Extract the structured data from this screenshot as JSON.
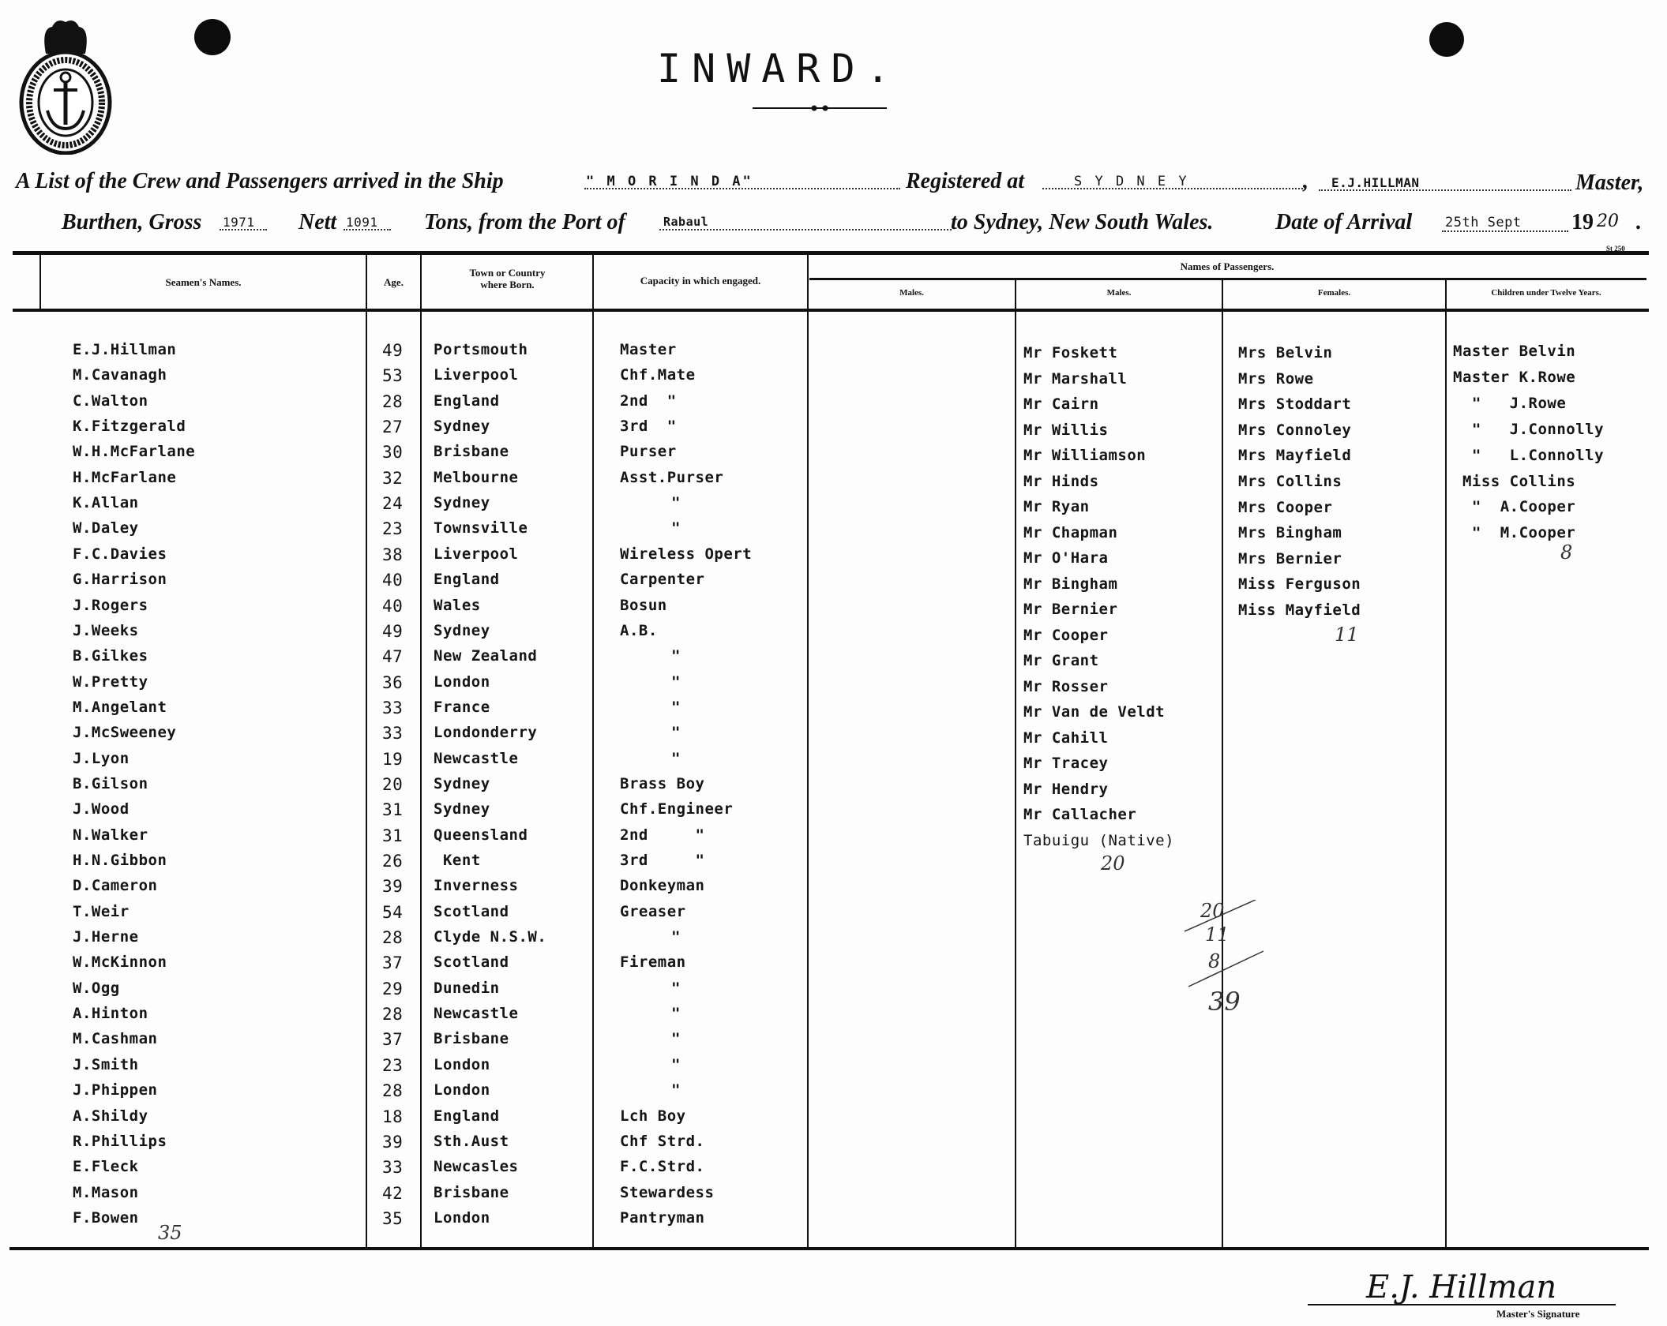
{
  "document": {
    "title": "INWARD.",
    "seal_text": "SHIPPING MASTER'S DEPARTMENT SYDNEY",
    "form_code": "St 250",
    "line1": {
      "prefix": "A List of the Crew and Passengers arrived in the Ship",
      "ship": "\" M O R I N D A\"",
      "registered_label": "Registered at",
      "registered_port": "S Y D N E Y",
      "comma": ",",
      "master_name": "E.J.HILLMAN",
      "master_label": "Master,"
    },
    "line2": {
      "burthen_label": "Burthen, Gross",
      "gross": "1971",
      "nett_label": "Nett",
      "nett": "1091",
      "tons_label": "Tons, from the Port of",
      "from_port": "Rabaul",
      "to_label": "to Sydney, New South Wales.",
      "arrival_label": "Date of Arrival",
      "arrival_date": "25th Sept",
      "year_prefix": "19",
      "year_suffix": "20",
      "period": "."
    },
    "headers": {
      "seamen_names": "Seamen's Names.",
      "age": "Age.",
      "town": "Town or Country where Born.",
      "capacity": "Capacity in which engaged.",
      "passengers": "Names of Passengers.",
      "males1": "Males.",
      "males2": "Males.",
      "females": "Females.",
      "children": "Children under Twelve Years."
    },
    "crew": [
      {
        "name": "E.J.Hillman",
        "age": "49",
        "born": "Portsmouth",
        "capacity": "Master"
      },
      {
        "name": "M.Cavanagh",
        "age": "53",
        "born": "Liverpool",
        "capacity": "Chf.Mate"
      },
      {
        "name": "C.Walton",
        "age": "28",
        "born": "England",
        "capacity": "2nd  \""
      },
      {
        "name": "K.Fitzgerald",
        "age": "27",
        "born": "Sydney",
        "capacity": "3rd  \""
      },
      {
        "name": "W.H.McFarlane",
        "age": "30",
        "born": "Brisbane",
        "capacity": "Purser"
      },
      {
        "name": "H.McFarlane",
        "age": "32",
        "born": "Melbourne",
        "capacity": "Asst.Purser"
      },
      {
        "name": "K.Allan",
        "age": "24",
        "born": "Sydney",
        "capacity": "\""
      },
      {
        "name": "W.Daley",
        "age": "23",
        "born": "Townsville",
        "capacity": "\""
      },
      {
        "name": "F.C.Davies",
        "age": "38",
        "born": "Liverpool",
        "capacity": "Wireless Opert"
      },
      {
        "name": "G.Harrison",
        "age": "40",
        "born": "England",
        "capacity": "Carpenter"
      },
      {
        "name": "J.Rogers",
        "age": "40",
        "born": "Wales",
        "capacity": "Bosun"
      },
      {
        "name": "J.Weeks",
        "age": "49",
        "born": "Sydney",
        "capacity": "A.B."
      },
      {
        "name": "B.Gilkes",
        "age": "47",
        "born": "New Zealand",
        "capacity": "\""
      },
      {
        "name": "W.Pretty",
        "age": "36",
        "born": "London",
        "capacity": "\""
      },
      {
        "name": "M.Angelant",
        "age": "33",
        "born": "France",
        "capacity": "\""
      },
      {
        "name": "J.McSweeney",
        "age": "33",
        "born": "Londonderry",
        "capacity": "\""
      },
      {
        "name": "J.Lyon",
        "age": "19",
        "born": "Newcastle",
        "capacity": "\""
      },
      {
        "name": "B.Gilson",
        "age": "20",
        "born": "Sydney",
        "capacity": "Brass Boy"
      },
      {
        "name": "J.Wood",
        "age": "31",
        "born": "Sydney",
        "capacity": "Chf.Engineer"
      },
      {
        "name": "N.Walker",
        "age": "31",
        "born": "Queensland",
        "capacity": "2nd     \""
      },
      {
        "name": "H.N.Gibbon",
        "age": "26",
        "born": " Kent",
        "capacity": "3rd     \""
      },
      {
        "name": "D.Cameron",
        "age": "39",
        "born": "Inverness",
        "capacity": "Donkeyman"
      },
      {
        "name": "T.Weir",
        "age": "54",
        "born": "Scotland",
        "capacity": "Greaser"
      },
      {
        "name": "J.Herne",
        "age": "28",
        "born": "Clyde N.S.W.",
        "capacity": "\""
      },
      {
        "name": "W.McKinnon",
        "age": "37",
        "born": "Scotland",
        "capacity": "Fireman"
      },
      {
        "name": "W.Ogg",
        "age": "29",
        "born": "Dunedin",
        "capacity": "\""
      },
      {
        "name": "A.Hinton",
        "age": "28",
        "born": "Newcastle",
        "capacity": "\""
      },
      {
        "name": "M.Cashman",
        "age": "37",
        "born": "Brisbane",
        "capacity": "\""
      },
      {
        "name": "J.Smith",
        "age": "23",
        "born": "London",
        "capacity": "\""
      },
      {
        "name": "J.Phippen",
        "age": "28",
        "born": "London",
        "capacity": "\""
      },
      {
        "name": "A.Shildy",
        "age": "18",
        "born": "England",
        "capacity": "Lch Boy"
      },
      {
        "name": "R.Phillips",
        "age": "39",
        "born": "Sth.Aust",
        "capacity": "Chf Strd."
      },
      {
        "name": "E.Fleck",
        "age": "33",
        "born": "Newcasles",
        "capacity": "F.C.Strd."
      },
      {
        "name": "M.Mason",
        "age": "42",
        "born": "Brisbane",
        "capacity": "Stewardess"
      },
      {
        "name": "F.Bowen",
        "age": "35",
        "born": "London",
        "capacity": "Pantryman"
      }
    ],
    "passengers": {
      "males": [
        "Mr Foskett",
        "Mr Marshall",
        "Mr Cairn",
        "Mr Willis",
        "Mr Williamson",
        "Mr Hinds",
        "Mr Ryan",
        "Mr Chapman",
        "Mr O'Hara",
        "Mr Bingham",
        "Mr Bernier",
        "Mr Cooper",
        "Mr Grant",
        "Mr Rosser",
        "Mr Van de Veldt",
        "Mr Cahill",
        "Mr Tracey",
        "Mr Hendry",
        "Mr Callacher",
        "Tabuigu (Native)"
      ],
      "females": [
        "Mrs Belvin",
        "Mrs Rowe",
        "Mrs Stoddart",
        "Mrs Connoley",
        "Mrs Mayfield",
        "Mrs Collins",
        "Mrs Cooper",
        "Mrs Bingham",
        "Mrs Bernier",
        "Miss Ferguson",
        "Miss Mayfield"
      ],
      "children": [
        "Master Belvin",
        "Master K.Rowe",
        "  \"   J.Rowe",
        "  \"   J.Connolly",
        "  \"   L.Connolly",
        " Miss Collins",
        "  \"  A.Cooper",
        "  \"  M.Cooper"
      ]
    },
    "handwritten": {
      "crew_total": "35",
      "males_total": "20",
      "females_total": "11",
      "children_total": "8",
      "tally": [
        "20",
        "11",
        "8",
        "39"
      ]
    },
    "signature": {
      "name": "E.J. Hillman",
      "label": "Master's Signature"
    }
  }
}
